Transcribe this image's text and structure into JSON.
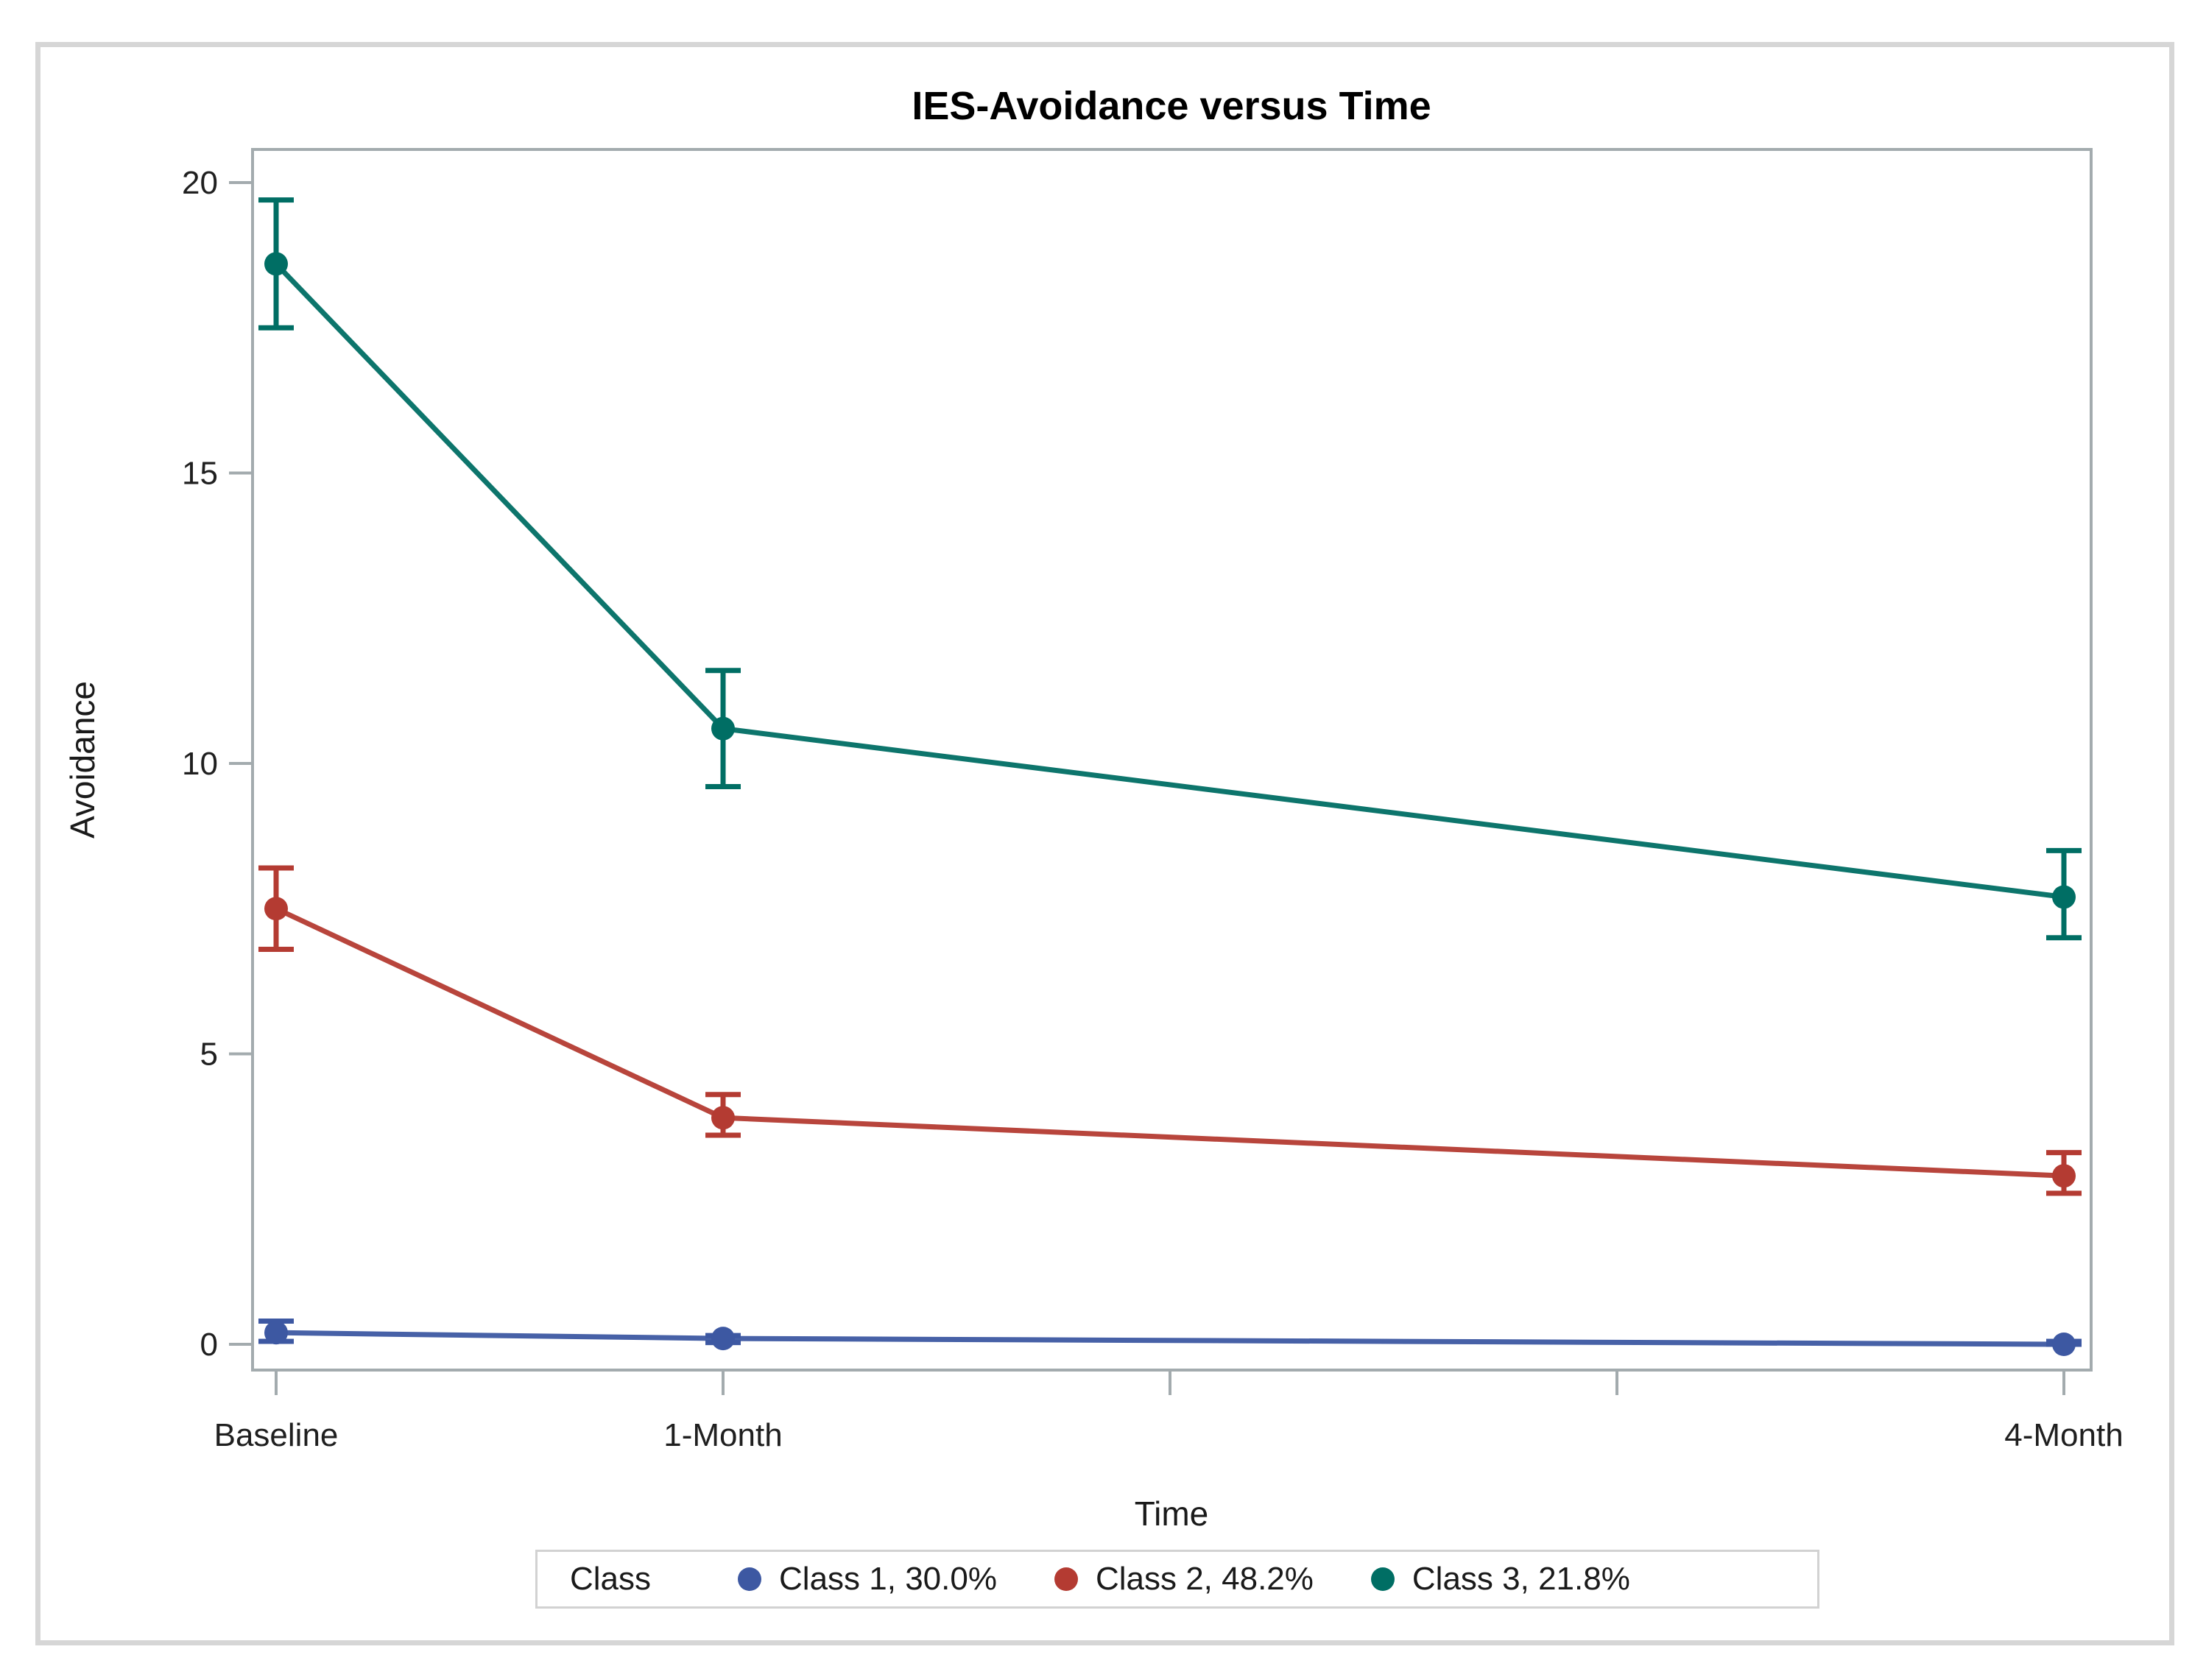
{
  "figure": {
    "background": "#ffffff",
    "border_color": "#d6d6d6"
  },
  "chart_data": {
    "type": "line",
    "title": "IES-Avoidance versus Time",
    "xlabel": "Time",
    "ylabel": "Avoidance",
    "x_categories": [
      "Baseline",
      "1-Month",
      "4-Month"
    ],
    "x_values_months": [
      0,
      1,
      4
    ],
    "x_axis_ticks_months": [
      0,
      1,
      2,
      3,
      4
    ],
    "xlim_months": [
      0,
      4
    ],
    "ylim": [
      0,
      20
    ],
    "y_ticks": [
      0,
      5,
      10,
      15,
      20
    ],
    "grid": false,
    "error_bars": true,
    "legend": {
      "position": "bottom",
      "title": "Class"
    },
    "series": [
      {
        "name": "Class 1, 30.0%",
        "color": "#3D58A2",
        "values": [
          0.2,
          0.1,
          0.0
        ],
        "ci_low": [
          0.05,
          0.03,
          0.0
        ],
        "ci_high": [
          0.4,
          0.15,
          0.05
        ]
      },
      {
        "name": "Class 2, 48.2%",
        "color": "#B43B32",
        "values": [
          7.5,
          3.9,
          2.9
        ],
        "ci_low": [
          6.8,
          3.6,
          2.6
        ],
        "ci_high": [
          8.2,
          4.3,
          3.3
        ]
      },
      {
        "name": "Class 3, 21.8%",
        "color": "#006E64",
        "values": [
          18.6,
          10.6,
          7.7
        ],
        "ci_low": [
          17.5,
          9.6,
          7.0
        ],
        "ci_high": [
          19.7,
          11.6,
          8.5
        ]
      }
    ],
    "axis_color": "#A3ABAE",
    "text_color": "#1f1f1f"
  }
}
